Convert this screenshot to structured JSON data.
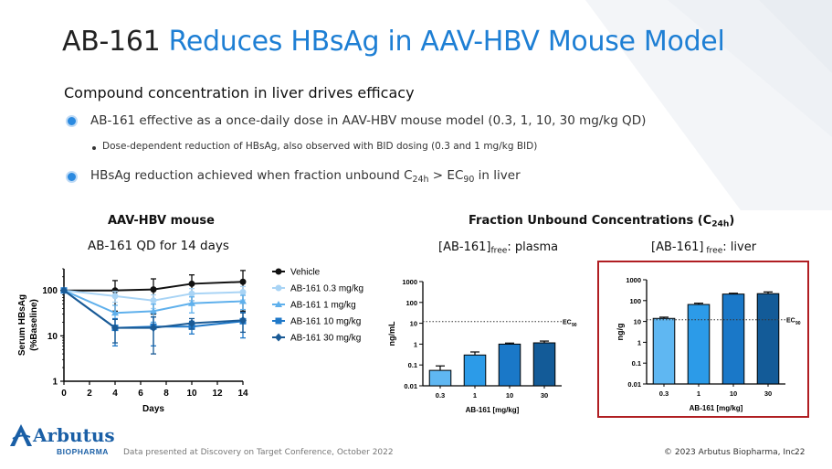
{
  "slide": {
    "title_prefix": "AB-161",
    "title_main": "Reduces HBsAg in AAV-HBV Mouse Model",
    "subhead": "Compound concentration in liver drives efficacy",
    "bullet1": "AB-161 effective as a once-daily dose in AAV-HBV mouse model (0.3, 1, 10, 30 mg/kg QD)",
    "bullet1_sub": "Dose-dependent reduction of HBsAg, also observed with BID dosing (0.3 and 1 mg/kg BID)",
    "bullet2_a": "HBsAg reduction achieved when fraction unbound C",
    "bullet2_sub1": "24h",
    "bullet2_b": " > EC",
    "bullet2_sub2": "90",
    "bullet2_c": " in liver",
    "panel_left_title": "AAV-HBV mouse",
    "panel_left_subtitle": "AB-161 QD for 14 days",
    "panel_right_title_a": "Fraction Unbound Concentrations (C",
    "panel_right_title_sub": "24h",
    "panel_right_title_b": ")",
    "plasma_label_a": "[AB-161]",
    "plasma_label_sub": "free",
    "plasma_label_b": ": plasma",
    "liver_label_a": "[AB-161]",
    "liver_label_sub": " free",
    "liver_label_b": ": liver",
    "footer_note": "Data presented at Discovery on Target Conference, October 2022",
    "copyright": "© 2023 Arbutus Biopharma, Inc.",
    "page_number": "22",
    "logo_name": "Arbutus",
    "logo_sub": "BIOPHARMA",
    "colors": {
      "accent": "#1e7fd4",
      "red_box": "#b01e22"
    }
  },
  "chart_data": [
    {
      "type": "line",
      "xlabel": "Days",
      "ylabel_line1": "Serum HBsAg",
      "ylabel_line2": "(%Baseline)",
      "x_ticks": [
        "0",
        "2",
        "4",
        "6",
        "8",
        "10",
        "12",
        "14"
      ],
      "y_ticks": [
        "1",
        "10",
        "100"
      ],
      "xlim": [
        0,
        14
      ],
      "ylim": [
        1,
        300
      ],
      "yscale": "log",
      "legend_position": "right",
      "series": [
        {
          "name": "Vehicle",
          "color": "#111111",
          "marker": "circle",
          "x": [
            0,
            4,
            7,
            10,
            14
          ],
          "y": [
            100,
            100,
            105,
            140,
            155
          ],
          "err": [
            0,
            65,
            75,
            80,
            120
          ]
        },
        {
          "name": "AB-161 0.3 mg/kg",
          "color": "#a9d4f5",
          "marker": "circle",
          "x": [
            0,
            4,
            7,
            10,
            14
          ],
          "y": [
            100,
            75,
            60,
            85,
            92
          ],
          "err": [
            0,
            20,
            20,
            25,
            30
          ]
        },
        {
          "name": "AB-161 1 mg/kg",
          "color": "#5fb0ec",
          "marker": "triangle",
          "x": [
            0,
            4,
            7,
            10,
            14
          ],
          "y": [
            100,
            32,
            35,
            52,
            58
          ],
          "err": [
            0,
            15,
            15,
            20,
            20
          ]
        },
        {
          "name": "AB-161 10 mg/kg",
          "color": "#1f78c8",
          "marker": "square",
          "x": [
            0,
            4,
            7,
            10,
            14
          ],
          "y": [
            100,
            15,
            16,
            16,
            21
          ],
          "err": [
            0,
            9,
            10,
            5,
            12
          ]
        },
        {
          "name": "AB-161 30 mg/kg",
          "color": "#1a5a95",
          "marker": "diamond",
          "x": [
            0,
            4,
            7,
            10,
            14
          ],
          "y": [
            100,
            15,
            15,
            19,
            22
          ],
          "err": [
            0,
            8,
            11,
            5,
            10
          ]
        }
      ]
    },
    {
      "type": "bar",
      "ylabel": "ng/mL",
      "xlabel": "AB-161 [mg/kg]",
      "categories": [
        "0.3",
        "1",
        "10",
        "30"
      ],
      "values": [
        0.055,
        0.3,
        1.0,
        1.15
      ],
      "err": [
        0.035,
        0.12,
        0.12,
        0.25
      ],
      "y_ticks": [
        "0.01",
        "0.1",
        "1",
        "10",
        "100",
        "1000"
      ],
      "ylim": [
        0.01,
        1000
      ],
      "yscale": "log",
      "reference_line": {
        "value": 12,
        "label": "EC",
        "label_sub": "90"
      },
      "colors": [
        "#5fb7f2",
        "#2c9be8",
        "#1a78c8",
        "#135b98"
      ]
    },
    {
      "type": "bar",
      "ylabel": "ng/g",
      "xlabel": "AB-161 [mg/kg]",
      "categories": [
        "0.3",
        "1",
        "10",
        "30"
      ],
      "values": [
        14,
        65,
        205,
        215
      ],
      "err": [
        2,
        10,
        20,
        45
      ],
      "y_ticks": [
        "0.01",
        "0.1",
        "1",
        "10",
        "100",
        "1000"
      ],
      "ylim": [
        0.01,
        1000
      ],
      "yscale": "log",
      "reference_line": {
        "value": 12,
        "label": "EC",
        "label_sub": "90"
      },
      "colors": [
        "#5fb7f2",
        "#2c9be8",
        "#1a78c8",
        "#135b98"
      ]
    }
  ]
}
